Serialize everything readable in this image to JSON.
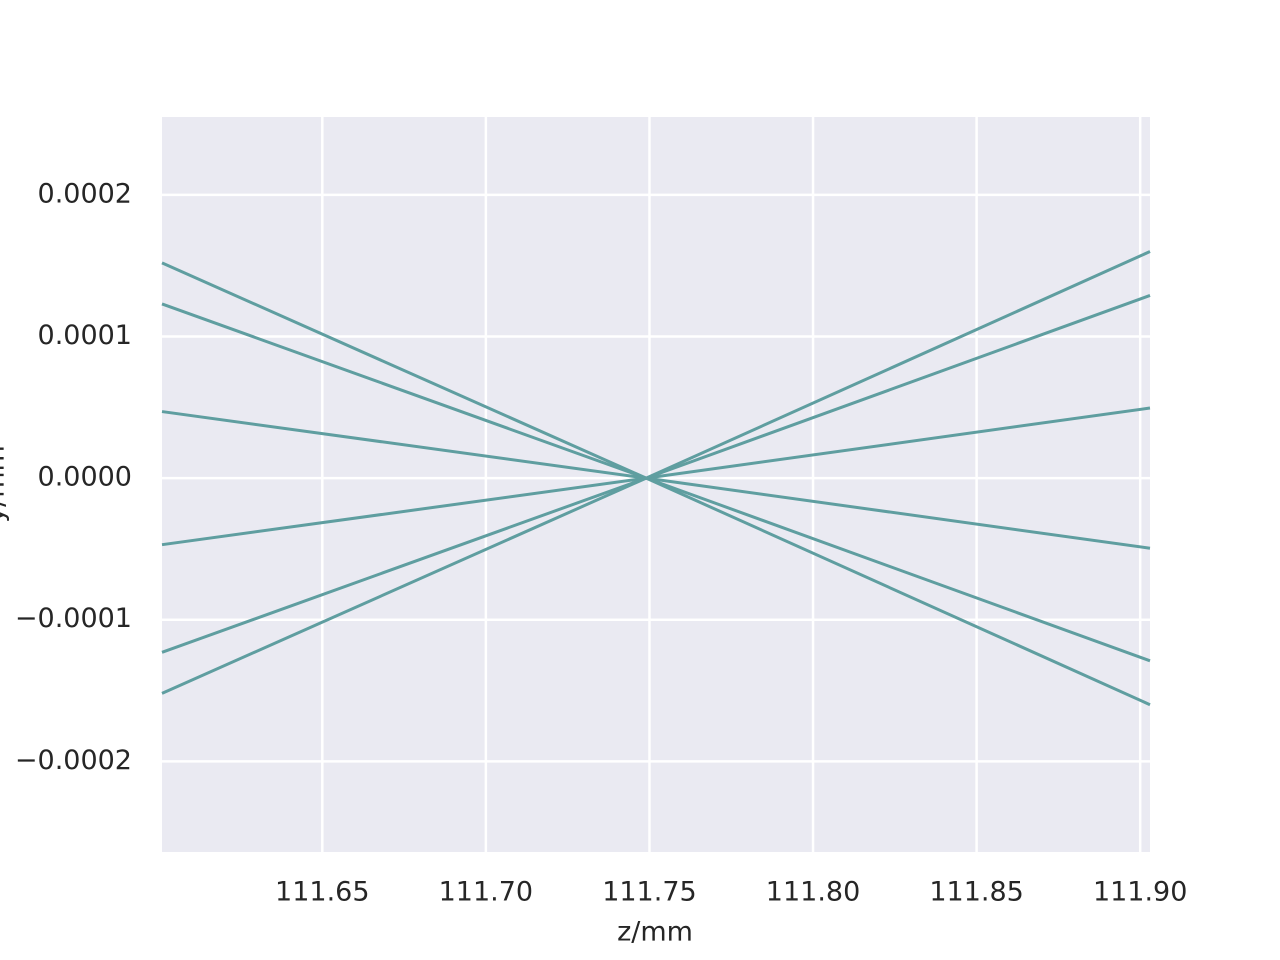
{
  "chart_data": {
    "type": "line",
    "xlabel": "z/mm",
    "ylabel": "y/mm",
    "x": [
      111.601,
      111.749,
      111.903
    ],
    "series": [
      {
        "color": "#5f9ea0",
        "values": [
          0.000152,
          0,
          -0.00016
        ]
      },
      {
        "color": "#5f9ea0",
        "values": [
          0.000123,
          0,
          -0.000129
        ]
      },
      {
        "color": "#5f9ea0",
        "values": [
          4.7e-05,
          0,
          -4.95e-05
        ]
      },
      {
        "color": "#5f9ea0",
        "values": [
          -4.7e-05,
          0,
          4.95e-05
        ]
      },
      {
        "color": "#5f9ea0",
        "values": [
          -0.000123,
          0,
          0.000129
        ]
      },
      {
        "color": "#5f9ea0",
        "values": [
          -0.000152,
          0,
          0.00016
        ]
      }
    ],
    "xlim": [
      111.601,
      111.903
    ],
    "ylim": [
      -0.000264,
      0.000255
    ],
    "xticks": [
      111.65,
      {
        "value": 111.7,
        "label": "111.70"
      },
      111.75,
      {
        "value": 111.8,
        "label": "111.80"
      },
      111.85,
      {
        "value": 111.9,
        "label": "111.90"
      }
    ],
    "yticks": [
      {
        "value": -0.0002,
        "label": "−0.0002"
      },
      {
        "value": -0.0001,
        "label": "−0.0001"
      },
      {
        "value": 0,
        "label": "0.0000"
      },
      0.0001,
      0.0002
    ],
    "grid": true
  }
}
